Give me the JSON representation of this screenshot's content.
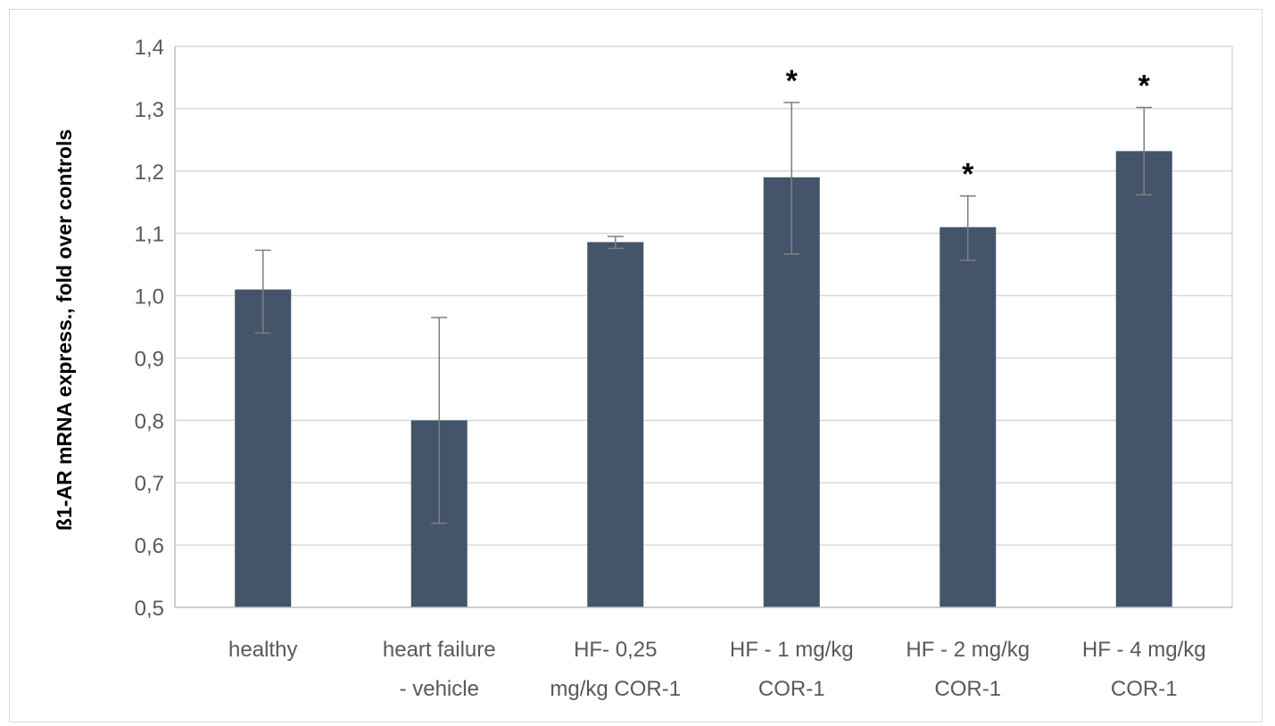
{
  "chart_data": {
    "type": "bar",
    "categories": [
      [
        "healthy"
      ],
      [
        "heart failure",
        "- vehicle"
      ],
      [
        "HF- 0,25",
        "mg/kg COR-1"
      ],
      [
        "HF - 1 mg/kg",
        "COR-1"
      ],
      [
        "HF - 2 mg/kg",
        "COR-1"
      ],
      [
        "HF - 4 mg/kg",
        "COR-1"
      ]
    ],
    "values": [
      1.01,
      0.8,
      1.086,
      1.19,
      1.11,
      1.232
    ],
    "error_upper": [
      1.073,
      0.965,
      1.095,
      1.31,
      1.16,
      1.302
    ],
    "error_lower": [
      0.94,
      0.635,
      1.076,
      1.067,
      1.057,
      1.162
    ],
    "significance": [
      "",
      "",
      "",
      "*",
      "*",
      "*"
    ],
    "title": "",
    "xlabel": "",
    "ylabel": "ß1-AR mRNA express., fold over controls",
    "ylim": [
      0.5,
      1.4
    ],
    "yticks": [
      0.5,
      0.6,
      0.7,
      0.8,
      0.9,
      1.0,
      1.1,
      1.2,
      1.3,
      1.4
    ],
    "ytick_labels": [
      "0,5",
      "0,6",
      "0,7",
      "0,8",
      "0,9",
      "1,0",
      "1,1",
      "1,2",
      "1,3",
      "1,4"
    ],
    "grid": true,
    "legend": "none",
    "colors": {
      "bar": "#44546a",
      "grid": "#d9d9d9",
      "axis": "#bfbfbf",
      "error": "#7f7f7f"
    }
  }
}
